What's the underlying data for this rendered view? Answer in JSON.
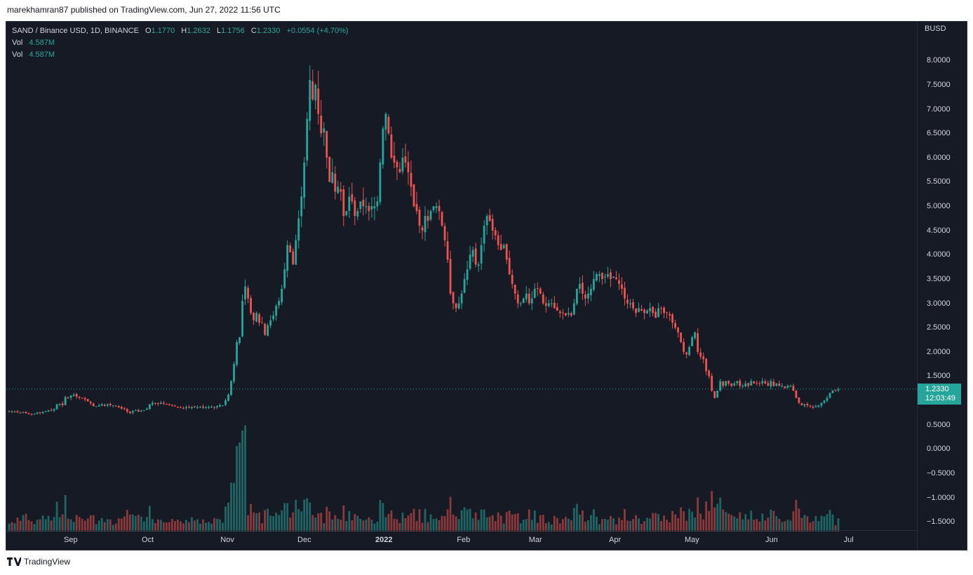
{
  "header": {
    "text": "marekhamran87 published on TradingView.com, Jun 27, 2022 11:56 UTC"
  },
  "legend": {
    "symbol": "SAND / Binance USD, 1D, BINANCE",
    "o_label": "O",
    "o": "1.1770",
    "h_label": "H",
    "h": "1.2632",
    "l_label": "L",
    "l": "1.1756",
    "c_label": "C",
    "c": "1.2330",
    "change": "+0.0554 (+4.70%)",
    "vol1_label": "Vol",
    "vol1": "4.587M",
    "vol2_label": "Vol",
    "vol2": "4.587M"
  },
  "price_axis": {
    "currency": "BUSD",
    "ticks": [
      "8.0000",
      "7.5000",
      "7.0000",
      "6.5000",
      "6.0000",
      "5.5000",
      "5.0000",
      "4.5000",
      "4.0000",
      "3.5000",
      "3.0000",
      "2.5000",
      "2.0000",
      "1.5000",
      "0.5000",
      "0.0000",
      "−0.5000",
      "−1.0000",
      "−1.5000"
    ],
    "current_price": "1.2330",
    "countdown": "12:03:49"
  },
  "time_axis": {
    "labels": [
      "Sep",
      "Oct",
      "Nov",
      "Dec",
      "2022",
      "Feb",
      "Mar",
      "Apr",
      "May",
      "Jun",
      "Jul"
    ]
  },
  "colors": {
    "up": "#26a69a",
    "down": "#ef5350",
    "background": "#161a25",
    "grid": "#2a2e39"
  },
  "chart_data": {
    "type": "candlestick",
    "symbol": "SAND / Binance USD",
    "interval": "1D",
    "x_range": [
      "2021-08-08",
      "2022-06-27"
    ],
    "ylim": [
      -1.7,
      8.8
    ],
    "close": [
      0.78,
      0.76,
      0.77,
      0.75,
      0.74,
      0.76,
      0.74,
      0.73,
      0.72,
      0.72,
      0.75,
      0.74,
      0.76,
      0.78,
      0.8,
      0.79,
      0.82,
      0.92,
      0.93,
      0.9,
      1.07,
      1.05,
      1.1,
      1.12,
      1.08,
      1.06,
      1.04,
      1.02,
      0.98,
      0.94,
      0.88,
      0.88,
      0.9,
      0.92,
      0.89,
      0.92,
      0.9,
      0.9,
      0.88,
      0.86,
      0.83,
      0.82,
      0.77,
      0.74,
      0.78,
      0.8,
      0.77,
      0.79,
      0.8,
      0.83,
      0.92,
      0.95,
      0.94,
      0.93,
      0.95,
      0.93,
      0.92,
      0.9,
      0.9,
      0.88,
      0.87,
      0.85,
      0.84,
      0.86,
      0.85,
      0.87,
      0.86,
      0.86,
      0.87,
      0.85,
      0.86,
      0.86,
      0.87,
      0.85,
      0.88,
      0.9,
      0.9,
      1.0,
      1.12,
      1.4,
      1.75,
      2.2,
      2.3,
      3.05,
      3.35,
      3.1,
      2.8,
      2.65,
      2.8,
      2.6,
      2.6,
      2.35,
      2.55,
      2.65,
      2.75,
      2.95,
      3.05,
      3.3,
      3.7,
      4.2,
      4.05,
      3.8,
      4.3,
      4.75,
      5.2,
      5.9,
      6.8,
      7.6,
      7.2,
      7.5,
      6.9,
      6.5,
      6.6,
      6.0,
      5.5,
      5.7,
      5.3,
      5.4,
      5.3,
      4.8,
      4.9,
      5.2,
      5.1,
      4.8,
      4.9,
      5.1,
      5.0,
      5.0,
      4.9,
      5.0,
      5.0,
      5.1,
      5.9,
      6.6,
      6.9,
      6.5,
      6.0,
      5.9,
      5.8,
      5.7,
      6.0,
      5.9,
      5.7,
      5.4,
      5.0,
      4.9,
      4.6,
      4.5,
      4.8,
      4.7,
      4.9,
      5.0,
      5.0,
      4.9,
      4.6,
      4.3,
      3.9,
      3.2,
      3.0,
      2.9,
      3.0,
      3.2,
      3.5,
      3.7,
      4.0,
      4.1,
      3.8,
      3.8,
      4.2,
      4.6,
      4.8,
      4.7,
      4.5,
      4.4,
      4.2,
      4.1,
      4.2,
      3.9,
      3.6,
      3.4,
      3.2,
      3.0,
      3.0,
      3.1,
      3.2,
      3.0,
      3.1,
      3.3,
      3.3,
      3.2,
      3.0,
      2.95,
      3.0,
      3.0,
      2.9,
      2.85,
      2.8,
      2.8,
      2.75,
      2.8,
      2.75,
      3.0,
      3.3,
      3.4,
      3.2,
      3.1,
      3.2,
      3.3,
      3.5,
      3.6,
      3.6,
      3.5,
      3.55,
      3.6,
      3.5,
      3.55,
      3.5,
      3.4,
      3.3,
      3.1,
      3.0,
      3.0,
      2.9,
      2.8,
      2.9,
      2.85,
      2.8,
      2.85,
      2.9,
      2.8,
      2.7,
      2.9,
      2.9,
      2.8,
      2.8,
      2.75,
      2.6,
      2.5,
      2.4,
      2.2,
      2.0,
      1.95,
      2.1,
      2.3,
      2.4,
      2.0,
      1.9,
      1.85,
      1.6,
      1.5,
      1.2,
      1.05,
      1.2,
      1.4,
      1.3,
      1.4,
      1.35,
      1.3,
      1.35,
      1.4,
      1.3,
      1.3,
      1.35,
      1.3,
      1.4,
      1.35,
      1.35,
      1.35,
      1.4,
      1.35,
      1.3,
      1.4,
      1.3,
      1.35,
      1.3,
      1.3,
      1.25,
      1.3,
      1.3,
      1.2,
      1.05,
      0.95,
      0.9,
      0.92,
      0.9,
      0.88,
      0.85,
      0.88,
      0.9,
      0.95,
      1.0,
      1.05,
      1.15,
      1.2,
      1.2,
      1.23
    ],
    "last_bar": {
      "open": 1.177,
      "high": 1.2632,
      "low": 1.1756,
      "close": 1.233,
      "change": 0.0554,
      "change_pct": 4.7
    },
    "volume_last": "4.587M"
  }
}
